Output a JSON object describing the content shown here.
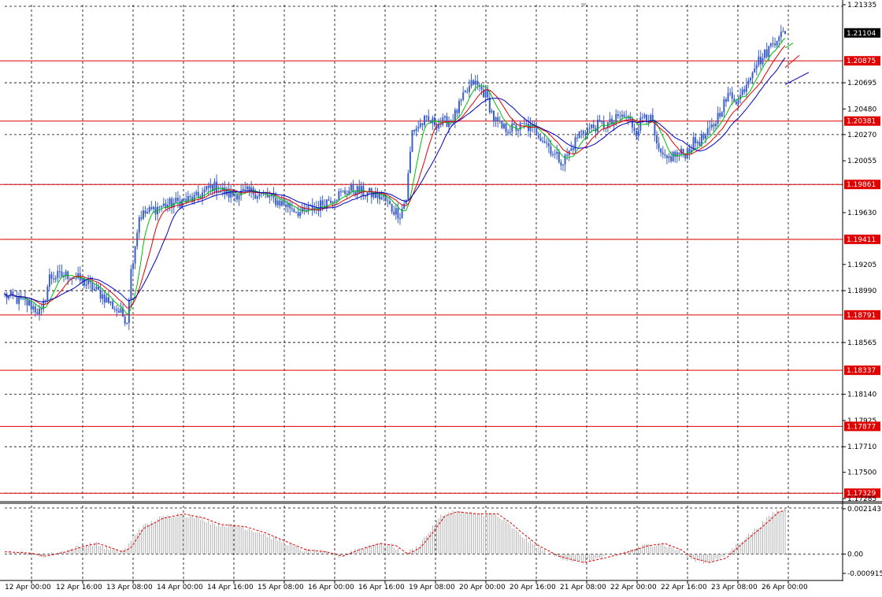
{
  "chart_data": {
    "type": "candlestick",
    "title": "",
    "xlabel": "",
    "ylabel": "",
    "colors": {
      "candle": "#3b5fc9",
      "ma_fast": "#00c000",
      "ma_mid": "#e00000",
      "ma_slow": "#0000c0",
      "level_line": "#e00000",
      "grid": "#000000",
      "oscillator_bars": "#b0b0b0",
      "oscillator_signal": "#e00000",
      "price_label_bg": "#000000",
      "level_label_bg": "#e00000"
    },
    "main": {
      "ylim": [
        1.17285,
        1.21335
      ],
      "y_ticks": [
        "1.21335",
        "1.21104",
        "1.20875",
        "1.20695",
        "1.20480",
        "1.20381",
        "1.20270",
        "1.20055",
        "1.19861",
        "1.19630",
        "1.19411",
        "1.19205",
        "1.18990",
        "1.18791",
        "1.18565",
        "1.18337",
        "1.18140",
        "1.17925",
        "1.17877",
        "1.17710",
        "1.17500",
        "1.17329",
        "1.17285"
      ],
      "current_price": "1.21104",
      "levels": [
        "1.20875",
        "1.20381",
        "1.19861",
        "1.19411",
        "1.18791",
        "1.18337",
        "1.17877",
        "1.17329"
      ],
      "close_path": [
        [
          0,
          1.1895
        ],
        [
          12,
          1.1888
        ],
        [
          18,
          1.188
        ],
        [
          22,
          1.191
        ],
        [
          32,
          1.1912
        ],
        [
          40,
          1.1905
        ],
        [
          48,
          1.1895
        ],
        [
          54,
          1.1885
        ],
        [
          60,
          1.1875
        ],
        [
          62,
          1.1915
        ],
        [
          66,
          1.196
        ],
        [
          76,
          1.1968
        ],
        [
          86,
          1.1972
        ],
        [
          94,
          1.1975
        ],
        [
          102,
          1.1985
        ],
        [
          110,
          1.1978
        ],
        [
          122,
          1.198
        ],
        [
          130,
          1.1975
        ],
        [
          140,
          1.1968
        ],
        [
          146,
          1.1962
        ],
        [
          150,
          1.1966
        ],
        [
          154,
          1.1968
        ],
        [
          160,
          1.1975
        ],
        [
          170,
          1.1982
        ],
        [
          180,
          1.1978
        ],
        [
          186,
          1.1975
        ],
        [
          190,
          1.1966
        ],
        [
          194,
          1.1962
        ],
        [
          197,
          1.1975
        ],
        [
          200,
          1.203
        ],
        [
          206,
          1.2038
        ],
        [
          214,
          1.2036
        ],
        [
          220,
          1.204
        ],
        [
          226,
          1.206
        ],
        [
          230,
          1.207
        ],
        [
          236,
          1.206
        ],
        [
          240,
          1.204
        ],
        [
          244,
          1.2032
        ],
        [
          250,
          1.2032
        ],
        [
          256,
          1.2034
        ],
        [
          262,
          1.2028
        ],
        [
          266,
          1.202
        ],
        [
          270,
          1.201
        ],
        [
          274,
          1.2005
        ],
        [
          278,
          1.2015
        ],
        [
          282,
          1.2028
        ],
        [
          290,
          1.2034
        ],
        [
          298,
          1.2036
        ],
        [
          302,
          1.2042
        ],
        [
          306,
          1.204
        ],
        [
          310,
          1.203
        ],
        [
          314,
          1.2045
        ],
        [
          318,
          1.2036
        ],
        [
          320,
          1.2015
        ],
        [
          324,
          1.2005
        ],
        [
          328,
          1.201
        ],
        [
          334,
          1.2012
        ],
        [
          338,
          1.202
        ],
        [
          344,
          1.2025
        ],
        [
          348,
          1.2035
        ],
        [
          352,
          1.205
        ],
        [
          356,
          1.206
        ],
        [
          360,
          1.2055
        ],
        [
          364,
          1.207
        ],
        [
          368,
          1.2085
        ],
        [
          372,
          1.209
        ],
        [
          376,
          1.21
        ],
        [
          380,
          1.211
        ],
        [
          383,
          1.2108
        ]
      ],
      "ma_periods": [
        8,
        14,
        22
      ],
      "candle_count": 384
    },
    "oscillator": {
      "ylim": [
        -0.000915,
        0.002143
      ],
      "y_ticks": [
        "0.002143",
        "0.00",
        "-0.000915"
      ],
      "signal_path": [
        [
          0,
          0.0001
        ],
        [
          10,
          5e-05
        ],
        [
          18,
          -0.0001
        ],
        [
          28,
          0.0001
        ],
        [
          38,
          0.0004
        ],
        [
          44,
          0.0005
        ],
        [
          50,
          0.0003
        ],
        [
          56,
          0.0001
        ],
        [
          60,
          0.0003
        ],
        [
          66,
          0.0012
        ],
        [
          76,
          0.0017
        ],
        [
          86,
          0.0019
        ],
        [
          96,
          0.0017
        ],
        [
          104,
          0.0014
        ],
        [
          116,
          0.0013
        ],
        [
          126,
          0.001
        ],
        [
          136,
          0.0006
        ],
        [
          146,
          0.0002
        ],
        [
          156,
          0.0001
        ],
        [
          164,
          -0.0001
        ],
        [
          172,
          0.0002
        ],
        [
          182,
          0.0005
        ],
        [
          190,
          0.0004
        ],
        [
          196,
          0.0
        ],
        [
          202,
          0.0003
        ],
        [
          208,
          0.001
        ],
        [
          214,
          0.0018
        ],
        [
          220,
          0.002
        ],
        [
          230,
          0.0019
        ],
        [
          240,
          0.0019
        ],
        [
          246,
          0.0015
        ],
        [
          252,
          0.001
        ],
        [
          260,
          0.0004
        ],
        [
          270,
          -0.0001
        ],
        [
          282,
          -0.0004
        ],
        [
          292,
          -0.0002
        ],
        [
          304,
          0.0001
        ],
        [
          314,
          0.0004
        ],
        [
          322,
          0.0005
        ],
        [
          330,
          0.0002
        ],
        [
          336,
          -0.0002
        ],
        [
          344,
          -0.0004
        ],
        [
          352,
          -0.0002
        ],
        [
          360,
          0.0005
        ],
        [
          370,
          0.0013
        ],
        [
          378,
          0.002
        ],
        [
          383,
          0.0021
        ]
      ]
    },
    "x_ticks": [
      "12 Apr 00:00",
      "12 Apr 16:00",
      "13 Apr 08:00",
      "14 Apr 00:00",
      "14 Apr 16:00",
      "15 Apr 08:00",
      "16 Apr 00:00",
      "16 Apr 16:00",
      "19 Apr 08:00",
      "20 Apr 00:00",
      "20 Apr 16:00",
      "21 Apr 08:00",
      "22 Apr 00:00",
      "22 Apr 16:00",
      "23 Apr 08:00",
      "26 Apr 00:00"
    ]
  }
}
